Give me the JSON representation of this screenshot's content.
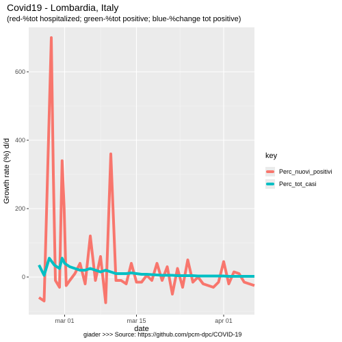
{
  "title": "Covid19 - Lombardia, Italy",
  "subtitle": "(red-%tot hospitalized; green-%tot positive; blue-%change tot positive)",
  "caption": "giader >>>  Source: https://github.com/pcm-dpc/COVID-19",
  "legend": {
    "title": "key",
    "items": [
      {
        "label": "Perc_nuovi_positivi",
        "color": "#F8766D"
      },
      {
        "label": "Perc_tot_casi",
        "color": "#00BFC4"
      }
    ]
  },
  "chart_data": {
    "type": "line",
    "title": "Covid19 - Lombardia, Italy",
    "subtitle": "(red-%tot hospitalized; green-%tot positive; blue-%change tot positive)",
    "xlabel": "date",
    "ylabel": "Growth rate (%) d/d",
    "x_ticks": [
      {
        "label": "mar 01",
        "day": 0
      },
      {
        "label": "mar 15",
        "day": 14
      },
      {
        "label": "apr 01",
        "day": 31
      }
    ],
    "y_ticks": [
      0,
      200,
      400,
      600
    ],
    "xlim": [
      -7,
      37
    ],
    "ylim": [
      -110,
      730
    ],
    "grid": true,
    "legend_position": "right",
    "series": [
      {
        "name": "Perc_nuovi_positivi",
        "color": "#F8766D",
        "points": [
          [
            -5,
            -60
          ],
          [
            -4,
            -70
          ],
          [
            -3,
            480
          ],
          [
            -2.6,
            700
          ],
          [
            -2.2,
            300
          ],
          [
            -1.8,
            -10
          ],
          [
            -1,
            -30
          ],
          [
            -0.5,
            340
          ],
          [
            -0.1,
            200
          ],
          [
            0.3,
            -25
          ],
          [
            1,
            -10
          ],
          [
            2,
            10
          ],
          [
            3,
            40
          ],
          [
            4,
            -20
          ],
          [
            5,
            120
          ],
          [
            6,
            -10
          ],
          [
            7,
            60
          ],
          [
            8,
            -75
          ],
          [
            9,
            360
          ],
          [
            10,
            -10
          ],
          [
            11,
            -10
          ],
          [
            12,
            -20
          ],
          [
            13,
            40
          ],
          [
            14,
            -15
          ],
          [
            15,
            -15
          ],
          [
            16,
            5
          ],
          [
            17,
            -10
          ],
          [
            18,
            40
          ],
          [
            19,
            -10
          ],
          [
            20,
            30
          ],
          [
            21,
            -50
          ],
          [
            22,
            25
          ],
          [
            23,
            -30
          ],
          [
            24,
            50
          ],
          [
            25,
            -15
          ],
          [
            26,
            0
          ],
          [
            27,
            -20
          ],
          [
            28,
            -25
          ],
          [
            29,
            -30
          ],
          [
            30,
            -15
          ],
          [
            31,
            45
          ],
          [
            32,
            -20
          ],
          [
            33,
            15
          ],
          [
            34,
            10
          ],
          [
            35,
            -15
          ],
          [
            36,
            -20
          ],
          [
            37,
            -25
          ]
        ]
      },
      {
        "name": "Perc_tot_casi",
        "color": "#00BFC4",
        "points": [
          [
            -5,
            35
          ],
          [
            -4,
            5
          ],
          [
            -3,
            55
          ],
          [
            -2,
            35
          ],
          [
            -1,
            25
          ],
          [
            -0.5,
            55
          ],
          [
            0,
            40
          ],
          [
            1,
            30
          ],
          [
            2,
            25
          ],
          [
            3,
            20
          ],
          [
            4,
            20
          ],
          [
            5,
            25
          ],
          [
            6,
            20
          ],
          [
            7,
            15
          ],
          [
            8,
            20
          ],
          [
            9,
            15
          ],
          [
            10,
            10
          ],
          [
            11,
            10
          ],
          [
            12,
            10
          ],
          [
            13,
            12
          ],
          [
            14,
            10
          ],
          [
            15,
            8
          ],
          [
            16,
            8
          ],
          [
            17,
            7
          ],
          [
            18,
            6
          ],
          [
            19,
            5
          ],
          [
            20,
            5
          ],
          [
            21,
            5
          ],
          [
            22,
            4
          ],
          [
            23,
            4
          ],
          [
            24,
            4
          ],
          [
            25,
            4
          ],
          [
            26,
            3
          ],
          [
            27,
            3
          ],
          [
            28,
            3
          ],
          [
            29,
            3
          ],
          [
            30,
            3
          ],
          [
            31,
            3
          ],
          [
            32,
            2
          ],
          [
            33,
            2
          ],
          [
            34,
            2
          ],
          [
            35,
            2
          ],
          [
            36,
            2
          ],
          [
            37,
            2
          ]
        ]
      }
    ]
  }
}
